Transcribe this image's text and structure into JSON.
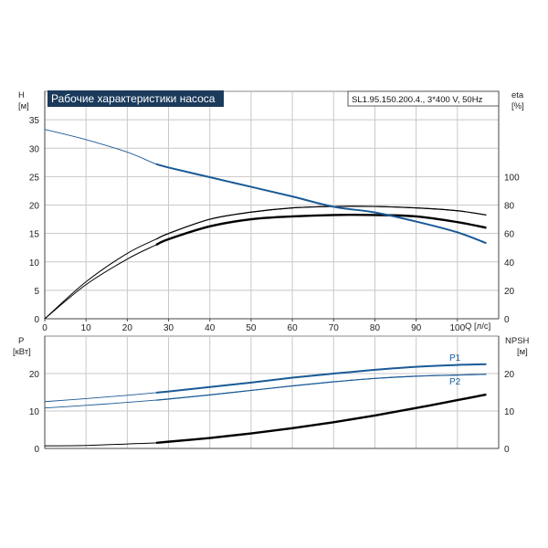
{
  "chart_title": "Рабочие характеристики насоса",
  "model": "SL1.95.150.200.4., 3*400 V, 50Hz",
  "colors": {
    "head": "#1a5a96",
    "black": "#000000",
    "p1": "#1a5a96",
    "p2": "#1a5a96",
    "title_bg": "#1b3a5c",
    "grid": "#c8c8c8"
  },
  "chart_data": [
    {
      "type": "line",
      "name": "top",
      "x_label": "Q [л/с]",
      "xlim": [
        0,
        110
      ],
      "x_ticks": [
        0,
        10,
        20,
        30,
        40,
        50,
        60,
        70,
        80,
        90,
        100
      ],
      "left_axis": {
        "label": "H",
        "unit": "[м]",
        "ylim": [
          0,
          40
        ],
        "ticks": [
          0,
          5,
          10,
          15,
          20,
          25,
          30,
          35
        ]
      },
      "right_axis": {
        "label": "eta",
        "unit": "[%]",
        "ylim": [
          0,
          160
        ],
        "ticks": [
          0,
          20,
          40,
          60,
          80,
          100
        ]
      },
      "series": [
        {
          "name": "H",
          "axis": "left",
          "x": [
            0,
            10,
            20,
            27,
            30,
            40,
            50,
            60,
            70,
            80,
            90,
            100,
            107
          ],
          "y": [
            33.3,
            31.5,
            29.3,
            27.2,
            26.6,
            24.9,
            23.2,
            21.5,
            19.7,
            18.7,
            17.1,
            15.2,
            13.3
          ]
        },
        {
          "name": "eta",
          "axis": "right",
          "x": [
            0,
            10,
            20,
            27,
            30,
            40,
            50,
            60,
            70,
            80,
            90,
            100,
            107
          ],
          "y": [
            0,
            24,
            42,
            52,
            56,
            65,
            70,
            72,
            73,
            73,
            72,
            68,
            64
          ]
        },
        {
          "name": "eta_upper",
          "axis": "right",
          "x": [
            0,
            10,
            20,
            27,
            30,
            40,
            50,
            60,
            70,
            80,
            90,
            100,
            107
          ],
          "y": [
            0,
            26,
            46,
            56,
            60,
            70,
            75,
            78,
            79,
            79,
            78,
            76,
            73
          ]
        }
      ]
    },
    {
      "type": "line",
      "name": "bottom",
      "xlim": [
        0,
        110
      ],
      "left_axis": {
        "label": "P",
        "unit": "[кВт]",
        "ylim": [
          0,
          30
        ],
        "ticks": [
          0,
          10,
          20
        ]
      },
      "right_axis": {
        "label": "NPSH",
        "unit": "[м]",
        "ylim": [
          0,
          30
        ],
        "ticks": [
          0,
          10,
          20
        ]
      },
      "series": [
        {
          "name": "P1",
          "axis": "left",
          "label": "P1",
          "x": [
            0,
            10,
            20,
            27,
            30,
            40,
            50,
            60,
            70,
            80,
            90,
            100,
            107
          ],
          "y": [
            12.5,
            13.3,
            14.2,
            14.9,
            15.2,
            16.4,
            17.6,
            18.9,
            20.0,
            21.0,
            21.8,
            22.3,
            22.5
          ]
        },
        {
          "name": "P2",
          "axis": "left",
          "label": "P2",
          "x": [
            0,
            10,
            20,
            27,
            30,
            40,
            50,
            60,
            70,
            80,
            90,
            100,
            107
          ],
          "y": [
            10.8,
            11.5,
            12.3,
            12.9,
            13.2,
            14.3,
            15.5,
            16.7,
            17.8,
            18.7,
            19.3,
            19.6,
            19.8
          ]
        },
        {
          "name": "NPSH",
          "axis": "right",
          "x": [
            0,
            10,
            20,
            27,
            30,
            40,
            50,
            60,
            70,
            80,
            90,
            100,
            107
          ],
          "y": [
            0.7,
            0.8,
            1.2,
            1.5,
            1.8,
            2.8,
            4.0,
            5.4,
            7.0,
            8.8,
            10.8,
            12.9,
            14.4
          ]
        }
      ]
    }
  ]
}
